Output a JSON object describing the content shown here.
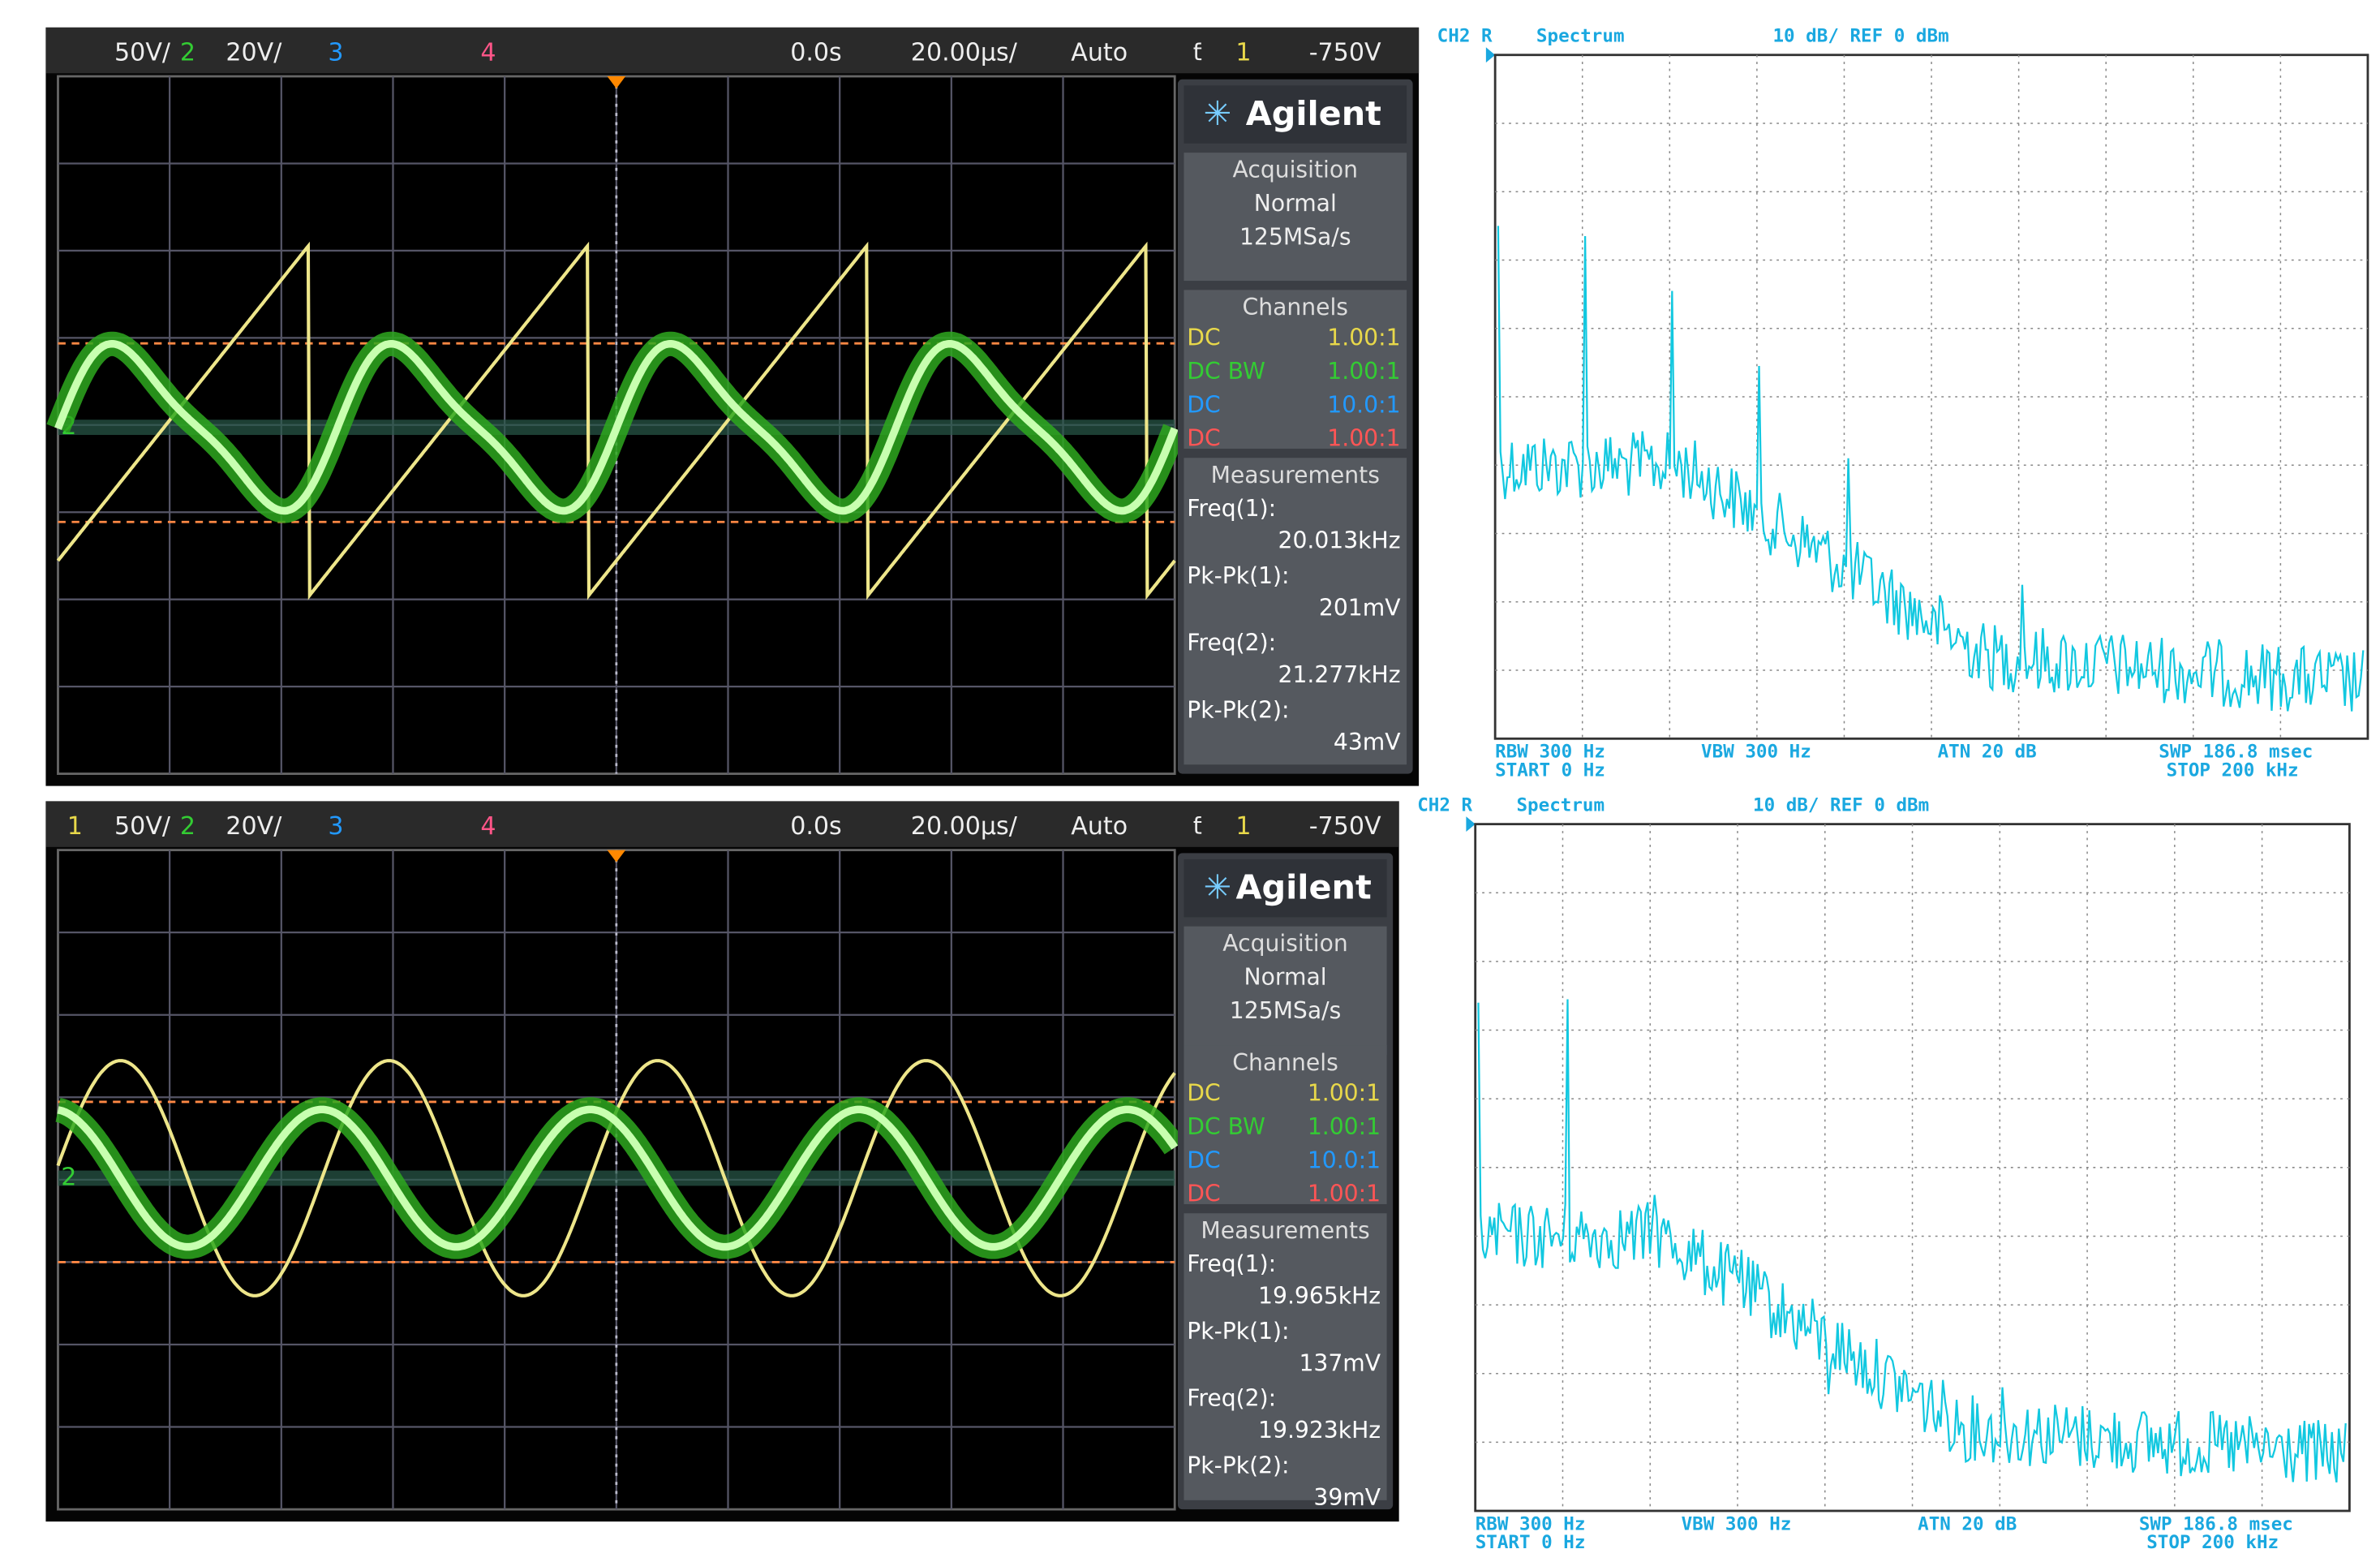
{
  "scopes": [
    {
      "header": {
        "ch1_scale": "50V/",
        "ch2": "2",
        "ch2_scale": "20V/",
        "ch3": "3",
        "ch4": "4",
        "delay": "0.0s",
        "timebase": "20.00μs/",
        "trigger_mode": "Auto",
        "trigger_source": "1",
        "trigger_level": "-750V"
      },
      "brand": "Agilent",
      "acquisition": {
        "title": "Acquisition",
        "mode": "Normal",
        "rate": "125MSa/s"
      },
      "channels": {
        "title": "Channels",
        "rows": [
          [
            "DC",
            "1.00:1"
          ],
          [
            "DC BW",
            "1.00:1"
          ],
          [
            "DC",
            "10.0:1"
          ],
          [
            "DC",
            "1.00:1"
          ]
        ]
      },
      "measurements": {
        "title": "Measurements",
        "items": [
          {
            "label": "Freq(1):",
            "value": "20.013kHz"
          },
          {
            "label": "Pk-Pk(1):",
            "value": "201mV"
          },
          {
            "label": "Freq(2):",
            "value": "21.277kHz"
          },
          {
            "label": "Pk-Pk(2):",
            "value": "43mV"
          }
        ]
      },
      "marker": "2"
    },
    {
      "header": {
        "ch1": "1",
        "ch1_scale": "50V/",
        "ch2": "2",
        "ch2_scale": "20V/",
        "ch3": "3",
        "ch4": "4",
        "delay": "0.0s",
        "timebase": "20.00μs/",
        "trigger_mode": "Auto",
        "trigger_source": "1",
        "trigger_level": "-750V"
      },
      "brand": "Agilent",
      "acquisition": {
        "title": "Acquisition",
        "mode": "Normal",
        "rate": "125MSa/s"
      },
      "channels": {
        "title": "Channels",
        "rows": [
          [
            "DC",
            "1.00:1"
          ],
          [
            "DC BW",
            "1.00:1"
          ],
          [
            "DC",
            "10.0:1"
          ],
          [
            "DC",
            "1.00:1"
          ]
        ]
      },
      "measurements": {
        "title": "Measurements",
        "items": [
          {
            "label": "Freq(1):",
            "value": "19.965kHz"
          },
          {
            "label": "Pk-Pk(1):",
            "value": "137mV"
          },
          {
            "label": "Freq(2):",
            "value": "19.923kHz"
          },
          {
            "label": "Pk-Pk(2):",
            "value": "39mV"
          }
        ]
      },
      "marker": "2"
    }
  ],
  "spectra": [
    {
      "header": {
        "channel": "CH2 R",
        "mode": "Spectrum",
        "scale": "10 dB/ REF 0 dBm"
      },
      "footer": {
        "rbw": "RBW 300 Hz",
        "vbw": "VBW 300 Hz",
        "atn": "ATN 20 dB",
        "swp": "SWP 186.8 msec",
        "start": "START 0 Hz",
        "stop": "STOP 200 kHz"
      }
    },
    {
      "header": {
        "channel": "CH2 R",
        "mode": "Spectrum",
        "scale": "10 dB/ REF 0 dBm"
      },
      "footer": {
        "rbw": "RBW 300 Hz",
        "vbw": "VBW 300 Hz",
        "atn": "ATN 20 dB",
        "swp": "SWP 186.8 msec",
        "start": "START 0 Hz",
        "stop": "STOP 200 kHz"
      }
    }
  ]
}
